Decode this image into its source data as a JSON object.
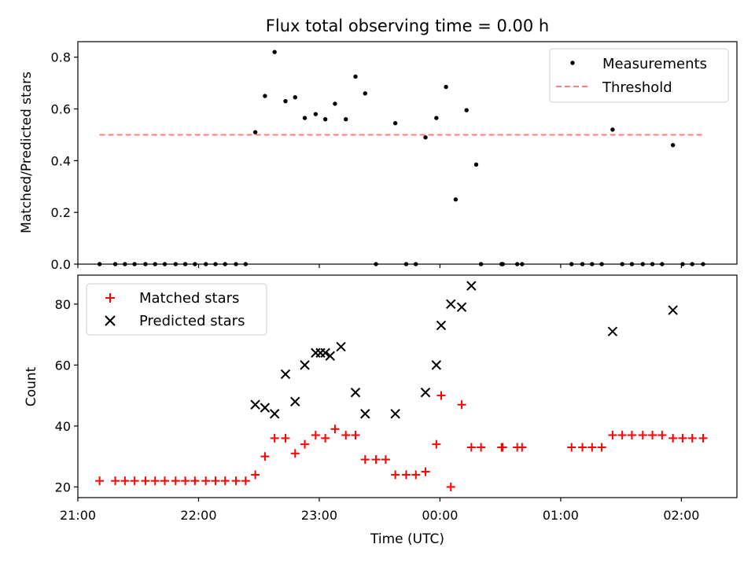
{
  "chart_data": [
    {
      "type": "scatter",
      "title": "Flux total observing time = 0.00 h",
      "xlabel": "",
      "ylabel": "Matched/Predicted stars",
      "xlim": [
        21.0,
        26.46
      ],
      "ylim": [
        0.0,
        0.86
      ],
      "ytick_values": [
        0.0,
        0.2,
        0.4,
        0.6,
        0.8
      ],
      "ytick_labels": [
        "0.0",
        "0.2",
        "0.4",
        "0.6",
        "0.8"
      ],
      "xtick_values": [
        21,
        22,
        23,
        24,
        25,
        26
      ],
      "grid": false,
      "legend": {
        "placement": "top-right",
        "entries": [
          "Measurements",
          "Threshold"
        ]
      },
      "series": [
        {
          "name": "Measurements",
          "marker": "dot",
          "color": "#000000",
          "x": [
            21.18,
            21.31,
            21.39,
            21.47,
            21.56,
            21.64,
            21.72,
            21.81,
            21.89,
            21.97,
            22.06,
            22.14,
            22.22,
            22.31,
            22.39,
            22.47,
            22.55,
            22.63,
            22.72,
            22.8,
            22.88,
            22.97,
            23.05,
            23.13,
            23.22,
            23.3,
            23.38,
            23.47,
            23.63,
            23.72,
            23.8,
            23.88,
            23.97,
            24.05,
            24.13,
            24.22,
            24.3,
            24.34,
            24.51,
            24.52,
            24.64,
            24.68,
            25.09,
            25.18,
            25.26,
            25.34,
            25.43,
            25.51,
            25.59,
            25.68,
            25.76,
            25.84,
            25.93,
            26.01,
            26.09,
            26.18
          ],
          "y": [
            0.0,
            0.0,
            0.0,
            0.0,
            0.0,
            0.0,
            0.0,
            0.0,
            0.0,
            0.0,
            0.0,
            0.0,
            0.0,
            0.0,
            0.0,
            0.51,
            0.65,
            0.82,
            0.63,
            0.645,
            0.565,
            0.58,
            0.56,
            0.62,
            0.56,
            0.725,
            0.66,
            0.0,
            0.545,
            0.0,
            0.0,
            0.49,
            0.565,
            0.685,
            0.25,
            0.595,
            0.385,
            0.0,
            0.0,
            0.0,
            0.0,
            0.0,
            0.0,
            0.0,
            0.0,
            0.0,
            0.52,
            0.0,
            0.0,
            0.0,
            0.0,
            0.0,
            0.46,
            0.0,
            0.0,
            0.0
          ]
        },
        {
          "name": "Threshold",
          "kind": "dashed-line",
          "color": "#ff7f7f",
          "x": [
            21.18,
            26.18
          ],
          "y": [
            0.5,
            0.5
          ]
        }
      ]
    },
    {
      "type": "scatter",
      "title": "",
      "xlabel": "Time (UTC)",
      "ylabel": "Count",
      "xlim": [
        21.0,
        26.46
      ],
      "ylim": [
        16.5,
        89.5
      ],
      "ytick_values": [
        20,
        40,
        60,
        80
      ],
      "ytick_labels": [
        "20",
        "40",
        "60",
        "80"
      ],
      "xtick_values": [
        21,
        22,
        23,
        24,
        25,
        26
      ],
      "xtick_labels": [
        "21:00",
        "22:00",
        "23:00",
        "00:00",
        "01:00",
        "02:00"
      ],
      "grid": false,
      "legend": {
        "placement": "top-left",
        "entries": [
          "Matched stars",
          "Predicted stars"
        ]
      },
      "series": [
        {
          "name": "Matched stars",
          "marker": "plus",
          "color": "#ff0000",
          "x": [
            21.18,
            21.31,
            21.39,
            21.47,
            21.56,
            21.64,
            21.72,
            21.81,
            21.89,
            21.97,
            22.06,
            22.14,
            22.22,
            22.31,
            22.39,
            22.47,
            22.55,
            22.63,
            22.72,
            22.8,
            22.88,
            22.97,
            23.05,
            23.13,
            23.22,
            23.3,
            23.38,
            23.47,
            23.55,
            23.63,
            23.72,
            23.8,
            23.88,
            23.97,
            24.01,
            24.09,
            24.18,
            24.26,
            24.34,
            24.51,
            24.52,
            24.64,
            24.68,
            25.09,
            25.18,
            25.26,
            25.34,
            25.43,
            25.51,
            25.59,
            25.68,
            25.76,
            25.84,
            25.93,
            26.01,
            26.09,
            26.18
          ],
          "y": [
            22,
            22,
            22,
            22,
            22,
            22,
            22,
            22,
            22,
            22,
            22,
            22,
            22,
            22,
            22,
            24,
            30,
            36,
            36,
            31,
            34,
            37,
            36,
            39,
            37,
            37,
            29,
            29,
            29,
            24,
            24,
            24,
            25,
            34,
            50,
            20,
            47,
            33,
            33,
            33,
            33,
            33,
            33,
            33,
            33,
            33,
            33,
            37,
            37,
            37,
            37,
            37,
            37,
            36,
            36,
            36,
            36
          ]
        },
        {
          "name": "Predicted stars",
          "marker": "x",
          "color": "#000000",
          "x": [
            22.47,
            22.55,
            22.63,
            22.72,
            22.8,
            22.88,
            22.97,
            23.01,
            23.05,
            23.09,
            23.18,
            23.3,
            23.38,
            23.63,
            23.88,
            23.97,
            24.01,
            24.09,
            24.18,
            24.26,
            25.43,
            25.93
          ],
          "y": [
            47,
            46,
            44,
            57,
            48,
            60,
            64,
            64,
            64,
            63,
            66,
            51,
            44,
            44,
            51,
            60,
            73,
            80,
            79,
            86,
            71,
            78
          ]
        }
      ]
    }
  ]
}
